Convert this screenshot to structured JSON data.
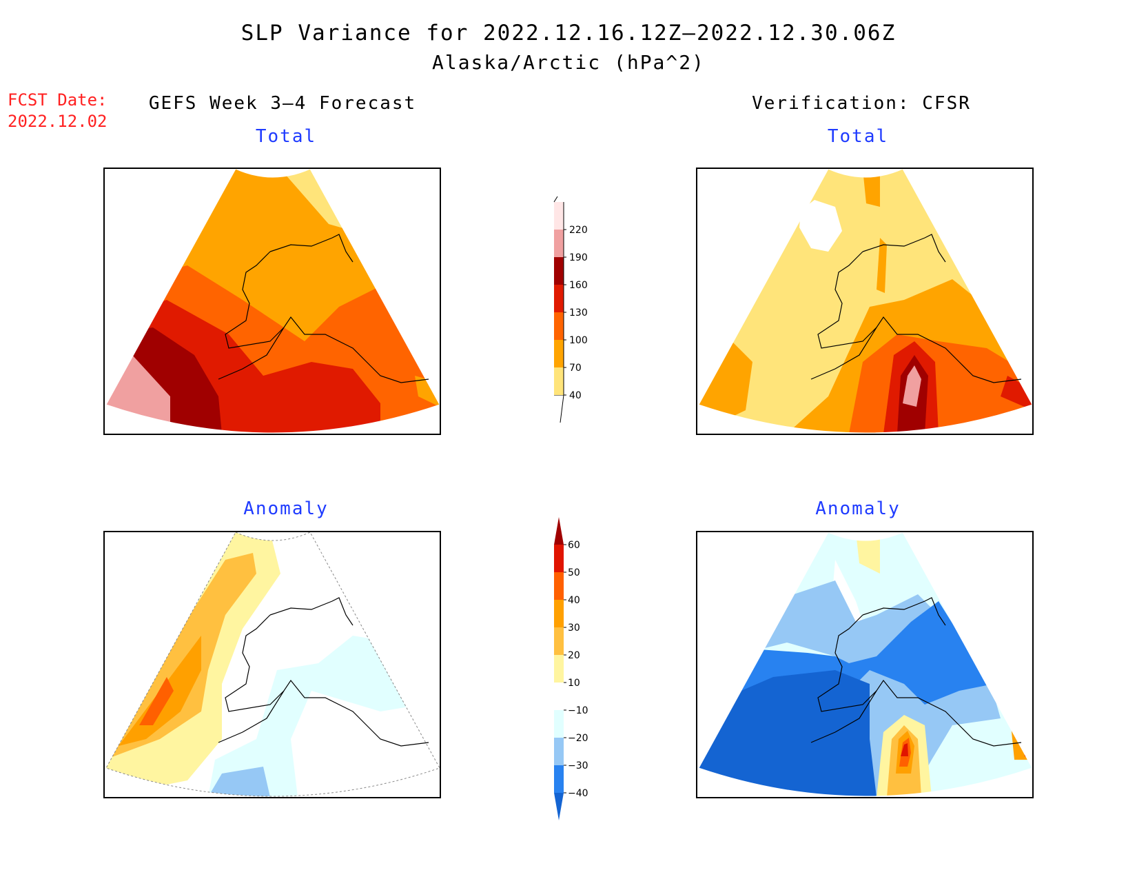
{
  "header": {
    "title": "SLP Variance for 2022.12.16.12Z–2022.12.30.06Z",
    "subtitle": "Alaska/Arctic (hPa^2)"
  },
  "forecast_date": {
    "label": "FCST Date:",
    "value": "2022.12.02"
  },
  "columns": {
    "left": "GEFS Week 3–4 Forecast",
    "right": "Verification: CFSR"
  },
  "panels": {
    "top_left_label": "Total",
    "top_right_label": "Total",
    "bottom_left_label": "Anomaly",
    "bottom_right_label": "Anomaly"
  },
  "total_colorbar": {
    "levels": [
      "40",
      "70",
      "100",
      "130",
      "160",
      "190",
      "220"
    ],
    "colors": [
      "#ffe47a",
      "#ffa400",
      "#ff6400",
      "#e01a00",
      "#a00000",
      "#f0a0a0",
      "#ffe6e6"
    ]
  },
  "anomaly_colorbar": {
    "levels": [
      "−40",
      "−30",
      "−20",
      "−10",
      "10",
      "20",
      "30",
      "40",
      "50",
      "60"
    ],
    "colors": [
      "#1464d2",
      "#2882f0",
      "#96c8f5",
      "#e1ffff",
      "#ffffff",
      "#fff5a0",
      "#ffc040",
      "#ffa000",
      "#ff6000",
      "#e01400",
      "#a00000"
    ]
  }
}
